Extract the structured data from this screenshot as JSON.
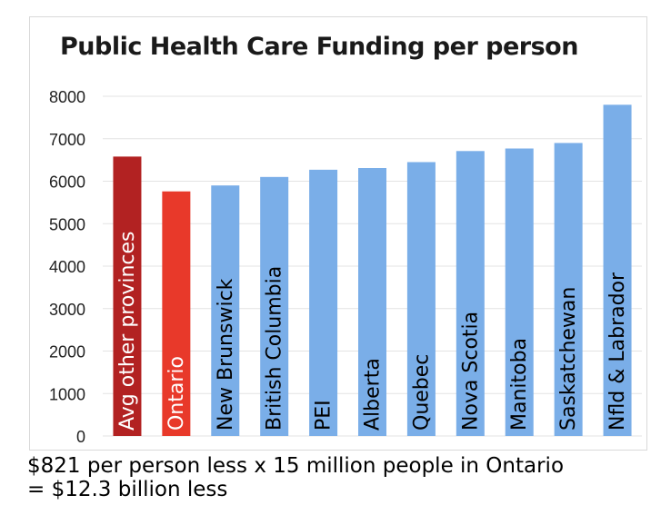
{
  "chart_data": {
    "type": "bar",
    "title": "Public Health Care Funding per person",
    "categories": [
      "Avg other provinces",
      "Ontario",
      "New Brunswick",
      "British Columbia",
      "PEI",
      "Alberta",
      "Quebec",
      "Nova Scotia",
      "Manitoba",
      "Saskatchewan",
      "Nfld & Labrador"
    ],
    "values": [
      6580,
      5760,
      5900,
      6100,
      6270,
      6310,
      6450,
      6710,
      6770,
      6900,
      7800
    ],
    "colors": [
      "#b22222",
      "#e8392a",
      "#7aaee8",
      "#7aaee8",
      "#7aaee8",
      "#7aaee8",
      "#7aaee8",
      "#7aaee8",
      "#7aaee8",
      "#7aaee8",
      "#7aaee8"
    ],
    "yticks": [
      0,
      1000,
      2000,
      3000,
      4000,
      5000,
      6000,
      7000,
      8000
    ],
    "ylim": [
      0,
      8000
    ],
    "grid": true,
    "xlabel": "",
    "ylabel": ""
  },
  "caption": {
    "line1": "$821 per person less x 15 million people in Ontario",
    "line2": "= $12.3 billion less"
  }
}
